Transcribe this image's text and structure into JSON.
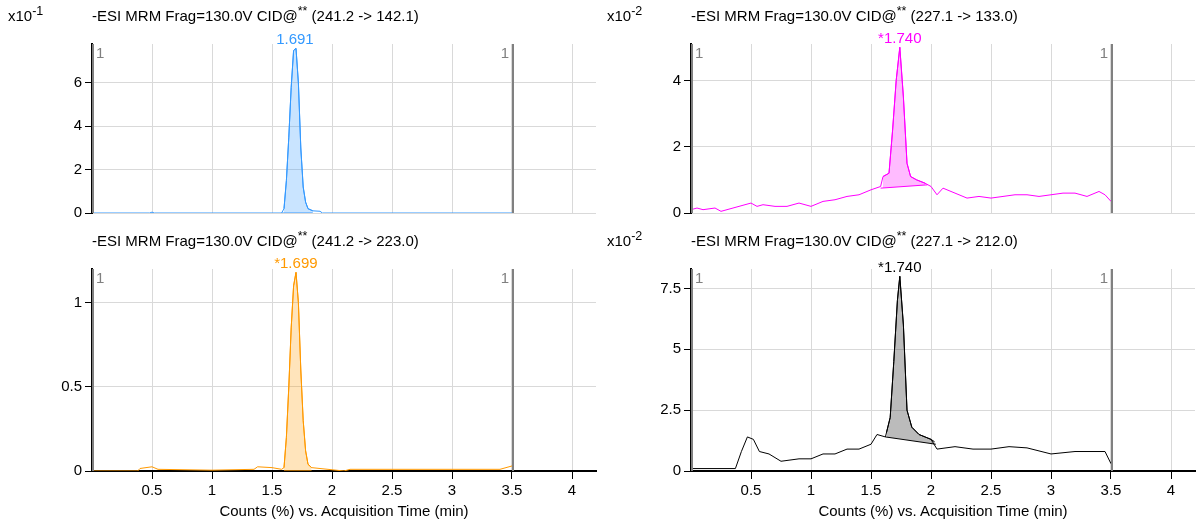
{
  "chart_data": [
    {
      "type": "line",
      "title": "-ESI MRM Frag=130.0V CID@$^{**}$ (241.2 -> 142.1)",
      "ylabel": "x10$^{-1}$",
      "xlim": [
        0,
        4.2
      ],
      "xticks": [
        0.5,
        1,
        1.5,
        2,
        2.5,
        3,
        3.5,
        4
      ],
      "ylim": [
        0,
        7.8
      ],
      "yticks": [
        0,
        2,
        4,
        6
      ],
      "grid": true,
      "legend": false,
      "tick_labels": "y",
      "series": [
        {
          "type": "line",
          "color": "#3399ff",
          "x": [
            0,
            0.48,
            0.5,
            0.52,
            1.58,
            1.6,
            1.62,
            1.64,
            1.66,
            1.68,
            1.7,
            1.72,
            1.74,
            1.76,
            1.78,
            1.8,
            1.84,
            1.9,
            1.92,
            3.5
          ],
          "values": [
            0,
            0,
            0.04,
            0,
            0,
            0.2,
            1.5,
            3.5,
            5.8,
            7.5,
            7.6,
            6,
            3,
            1.2,
            0.5,
            0.2,
            0.1,
            0.08,
            0,
            0
          ]
        },
        {
          "type": "line",
          "color": "#3399ff",
          "x": [
            1.58,
            1.84
          ],
          "values": [
            0,
            0
          ]
        },
        {
          "type": "area",
          "color": "#3399ff",
          "x": [
            1.6,
            1.62,
            1.64,
            1.66,
            1.68,
            1.7,
            1.72,
            1.74,
            1.76,
            1.78,
            1.8,
            1.84
          ],
          "values": [
            0.2,
            1.5,
            3.5,
            5.8,
            7.5,
            7.6,
            6,
            3,
            1.2,
            0.5,
            0.2,
            0.1
          ]
        }
      ],
      "ref_lines": [
        {
          "axis": "x",
          "value": 0,
          "color": "#808080"
        },
        {
          "axis": "x",
          "value": 3.5,
          "color": "#808080"
        }
      ],
      "annotations": [
        {
          "text": "1.691",
          "x": 1.691,
          "y": 7.6
        },
        {
          "text": "1",
          "x": 0
        },
        {
          "text": "1",
          "x": 3.5
        }
      ]
    },
    {
      "type": "line",
      "title": "-ESI MRM Frag=130.0V CID@$^{**}$ (227.1 -> 133.0)",
      "ylabel": "x10$^{-2}$",
      "xlim": [
        0,
        4.2
      ],
      "xticks": [
        0.5,
        1,
        1.5,
        2,
        2.5,
        3,
        3.5,
        4
      ],
      "ylim": [
        0,
        5.1
      ],
      "yticks": [
        0,
        2,
        4
      ],
      "grid": true,
      "legend": false,
      "tick_labels": "y",
      "series": [
        {
          "type": "line",
          "color": "#ff00ff",
          "x": [
            0,
            0.05,
            0.1,
            0.2,
            0.25,
            0.3,
            0.4,
            0.5,
            0.55,
            0.6,
            0.7,
            0.8,
            0.9,
            1,
            1.1,
            1.2,
            1.3,
            1.4,
            1.5,
            1.58,
            1.6,
            1.65,
            1.68,
            1.71,
            1.74,
            1.77,
            1.8,
            1.83,
            1.88,
            1.95,
            2,
            2.05,
            2.1,
            2.2,
            2.3,
            2.4,
            2.5,
            2.6,
            2.7,
            2.8,
            2.9,
            3,
            3.1,
            3.2,
            3.3,
            3.4,
            3.45,
            3.5
          ],
          "values": [
            0.1,
            0.15,
            0.1,
            0.15,
            0.05,
            0.1,
            0.2,
            0.3,
            0.2,
            0.25,
            0.2,
            0.2,
            0.3,
            0.2,
            0.35,
            0.4,
            0.5,
            0.55,
            0.7,
            0.8,
            1.1,
            1.2,
            2.5,
            4,
            5,
            3.5,
            1.5,
            1.1,
            1,
            0.9,
            0.8,
            0.55,
            0.75,
            0.6,
            0.45,
            0.5,
            0.45,
            0.5,
            0.55,
            0.55,
            0.5,
            0.55,
            0.6,
            0.6,
            0.5,
            0.65,
            0.55,
            0.35
          ]
        },
        {
          "type": "line",
          "color": "#ff00ff",
          "x": [
            1.58,
            1.97
          ],
          "values": [
            0.75,
            0.85
          ]
        },
        {
          "type": "area",
          "color": "#ff00ff",
          "x": [
            1.6,
            1.65,
            1.68,
            1.71,
            1.74,
            1.77,
            1.8,
            1.83,
            1.88,
            1.95
          ],
          "values": [
            1.1,
            1.2,
            2.5,
            4,
            5,
            3.5,
            1.5,
            1.1,
            1,
            0.9
          ]
        }
      ],
      "ref_lines": [
        {
          "axis": "x",
          "value": 0,
          "color": "#808080"
        },
        {
          "axis": "x",
          "value": 3.5,
          "color": "#808080"
        }
      ],
      "annotations": [
        {
          "text": "*1.740",
          "x": 1.74,
          "y": 5
        },
        {
          "text": "1",
          "x": 0
        },
        {
          "text": "1",
          "x": 3.5
        }
      ]
    },
    {
      "type": "line",
      "title": "-ESI MRM Frag=130.0V CID@$^{**}$ (241.2 -> 223.0)",
      "xlabel": "Counts (%) vs. Acquisition Time (min)",
      "xlim": [
        0,
        4.2
      ],
      "xticks": [
        0.5,
        1,
        1.5,
        2,
        2.5,
        3,
        3.5,
        4
      ],
      "ylim": [
        0,
        1.2
      ],
      "yticks": [
        0,
        0.5,
        1
      ],
      "grid": true,
      "legend": false,
      "series": [
        {
          "type": "line",
          "color": "#ff9900",
          "x": [
            0,
            0.38,
            0.4,
            0.5,
            0.55,
            1,
            1.35,
            1.38,
            1.5,
            1.58,
            1.6,
            1.62,
            1.64,
            1.66,
            1.68,
            1.7,
            1.72,
            1.74,
            1.76,
            1.78,
            1.8,
            1.83,
            2.1,
            2.15,
            3.4,
            3.5
          ],
          "values": [
            0,
            0,
            0.015,
            0.025,
            0.01,
            0.005,
            0.01,
            0.025,
            0.02,
            0.01,
            0.02,
            0.2,
            0.5,
            0.85,
            1.1,
            1.18,
            1,
            0.6,
            0.3,
            0.12,
            0.04,
            0.02,
            0,
            0.01,
            0.01,
            0.03
          ]
        },
        {
          "type": "line",
          "color": "#ff9900",
          "x": [
            1.6,
            1.83
          ],
          "values": [
            0,
            0
          ]
        },
        {
          "type": "area",
          "color": "#ff9900",
          "x": [
            1.6,
            1.62,
            1.64,
            1.66,
            1.68,
            1.7,
            1.72,
            1.74,
            1.76,
            1.78,
            1.8,
            1.83
          ],
          "values": [
            0.02,
            0.2,
            0.5,
            0.85,
            1.1,
            1.18,
            1,
            0.6,
            0.3,
            0.12,
            0.04,
            0.02
          ]
        }
      ],
      "ref_lines": [
        {
          "axis": "x",
          "value": 0,
          "color": "#808080"
        },
        {
          "axis": "x",
          "value": 3.5,
          "color": "#808080"
        }
      ],
      "annotations": [
        {
          "text": "*1.699",
          "x": 1.699,
          "y": 1.18
        },
        {
          "text": "1",
          "x": 0
        },
        {
          "text": "1",
          "x": 3.5
        }
      ]
    },
    {
      "type": "line",
      "title": "-ESI MRM Frag=130.0V CID@$^{**}$ (227.1 -> 212.0)",
      "ylabel": "x10$^{-2}$",
      "xlabel": "Counts (%) vs. Acquisition Time (min)",
      "xlim": [
        0,
        4.2
      ],
      "xticks": [
        0.5,
        1,
        1.5,
        2,
        2.5,
        3,
        3.5,
        4
      ],
      "ylim": [
        0,
        8.3
      ],
      "yticks": [
        0,
        2.5,
        5,
        7.5
      ],
      "grid": true,
      "legend": false,
      "series": [
        {
          "type": "line",
          "color": "#000000",
          "x": [
            0,
            0.2,
            0.37,
            0.42,
            0.47,
            0.52,
            0.57,
            0.65,
            0.75,
            0.9,
            1,
            1.1,
            1.2,
            1.3,
            1.4,
            1.5,
            1.55,
            1.62,
            1.66,
            1.69,
            1.72,
            1.74,
            1.77,
            1.8,
            1.84,
            1.9,
            2,
            2.05,
            2.2,
            2.35,
            2.5,
            2.65,
            2.8,
            3,
            3.2,
            3.45,
            3.5
          ],
          "values": [
            0.1,
            0.1,
            0.1,
            0.8,
            1.4,
            1.3,
            0.8,
            0.7,
            0.4,
            0.5,
            0.5,
            0.7,
            0.7,
            0.9,
            0.9,
            1.1,
            1.5,
            1.4,
            2.2,
            4.5,
            7,
            8,
            6,
            2.5,
            1.8,
            1.5,
            1.3,
            0.9,
            1,
            0.9,
            0.9,
            1,
            0.95,
            0.7,
            0.8,
            0.8,
            0.3
          ]
        },
        {
          "type": "line",
          "color": "#000000",
          "x": [
            1.62,
            2.04
          ],
          "values": [
            1.4,
            1.1
          ]
        },
        {
          "type": "area",
          "color": "#000000",
          "x": [
            1.63,
            1.66,
            1.69,
            1.72,
            1.74,
            1.77,
            1.8,
            1.84,
            1.9,
            2,
            2.03
          ],
          "values": [
            1.6,
            2.2,
            4.5,
            7,
            8,
            6,
            2.5,
            1.8,
            1.5,
            1.3,
            1.2
          ]
        }
      ],
      "ref_lines": [
        {
          "axis": "x",
          "value": 0,
          "color": "#808080"
        },
        {
          "axis": "x",
          "value": 3.5,
          "color": "#808080"
        }
      ],
      "annotations": [
        {
          "text": "*1.740",
          "x": 1.74,
          "y": 8
        },
        {
          "text": "1",
          "x": 0
        },
        {
          "text": "1",
          "x": 3.5
        }
      ]
    }
  ]
}
